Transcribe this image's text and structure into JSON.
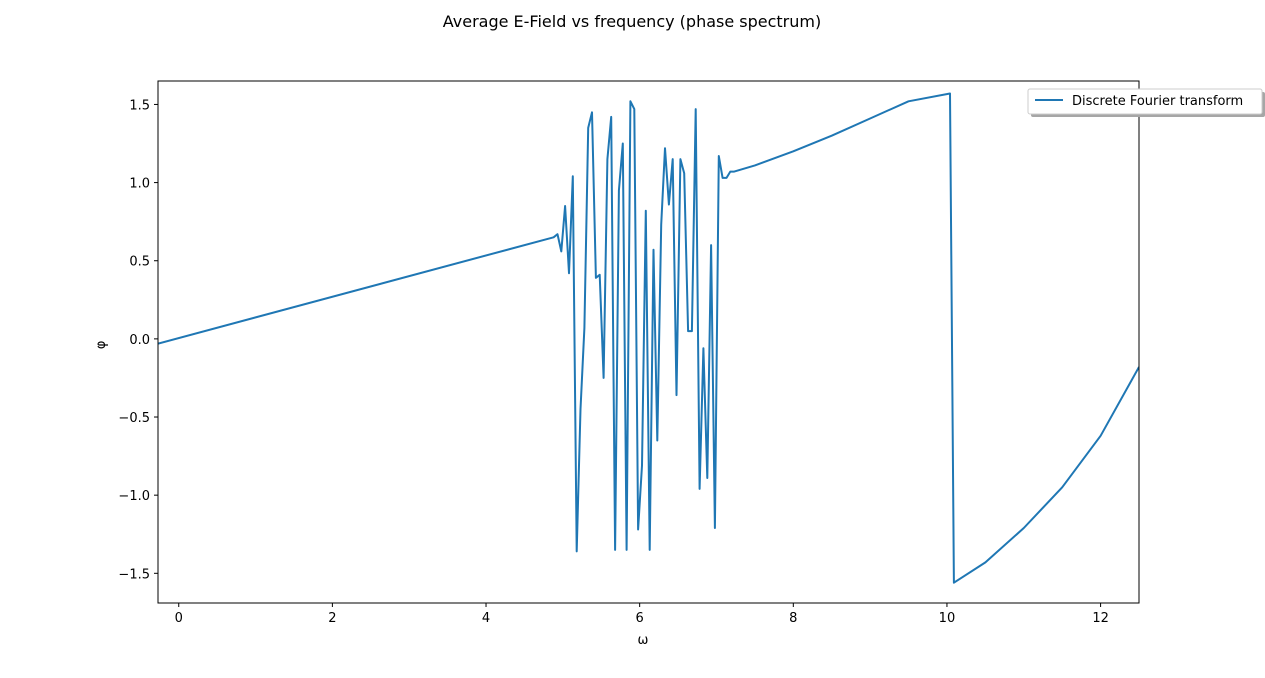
{
  "chart_data": {
    "type": "line",
    "title": "Average E-Field vs frequency (phase spectrum)",
    "xlabel": "ω",
    "ylabel": "φ",
    "xlim": [
      -0.27,
      12.5
    ],
    "ylim": [
      -1.69,
      1.65
    ],
    "xticks": [
      0,
      2,
      4,
      6,
      8,
      10,
      12
    ],
    "xtick_labels": [
      "0",
      "2",
      "4",
      "6",
      "8",
      "10",
      "12"
    ],
    "yticks": [
      -1.5,
      -1.0,
      -0.5,
      0.0,
      0.5,
      1.0,
      1.5
    ],
    "ytick_labels": [
      "−1.5",
      "−1.0",
      "−0.5",
      "0.0",
      "0.5",
      "1.0",
      "1.5"
    ],
    "grid": false,
    "legend_position": "top-right",
    "series": [
      {
        "name": "Discrete Fourier transform",
        "color": "#1f77b4",
        "x": [
          -0.27,
          4.88,
          4.93,
          4.98,
          5.03,
          5.08,
          5.13,
          5.18,
          5.23,
          5.28,
          5.33,
          5.38,
          5.43,
          5.48,
          5.53,
          5.58,
          5.63,
          5.68,
          5.73,
          5.78,
          5.83,
          5.88,
          5.93,
          5.98,
          6.03,
          6.08,
          6.13,
          6.18,
          6.23,
          6.28,
          6.33,
          6.38,
          6.43,
          6.48,
          6.53,
          6.58,
          6.63,
          6.68,
          6.73,
          6.78,
          6.83,
          6.88,
          6.93,
          6.98,
          7.03,
          7.08,
          7.13,
          7.18,
          7.23,
          7.5,
          8.0,
          8.5,
          9.0,
          9.5,
          10.04,
          10.09,
          10.5,
          11.0,
          11.5,
          12.0,
          12.5
        ],
        "y": [
          -0.03,
          0.65,
          0.67,
          0.56,
          0.85,
          0.42,
          1.04,
          -1.36,
          -0.45,
          0.07,
          1.35,
          1.45,
          0.39,
          0.41,
          -0.25,
          1.15,
          1.42,
          -1.35,
          0.95,
          1.25,
          -1.35,
          1.52,
          1.47,
          -1.22,
          -0.81,
          0.82,
          -1.35,
          0.57,
          -0.65,
          0.73,
          1.22,
          0.86,
          1.15,
          -0.36,
          1.15,
          1.06,
          0.05,
          0.05,
          1.47,
          -0.96,
          -0.06,
          -0.89,
          0.6,
          -1.21,
          1.17,
          1.03,
          1.03,
          1.07,
          1.07,
          1.11,
          1.2,
          1.3,
          1.41,
          1.52,
          1.57,
          -1.56,
          -1.43,
          -1.21,
          -0.95,
          -0.62,
          -0.18
        ]
      }
    ]
  }
}
